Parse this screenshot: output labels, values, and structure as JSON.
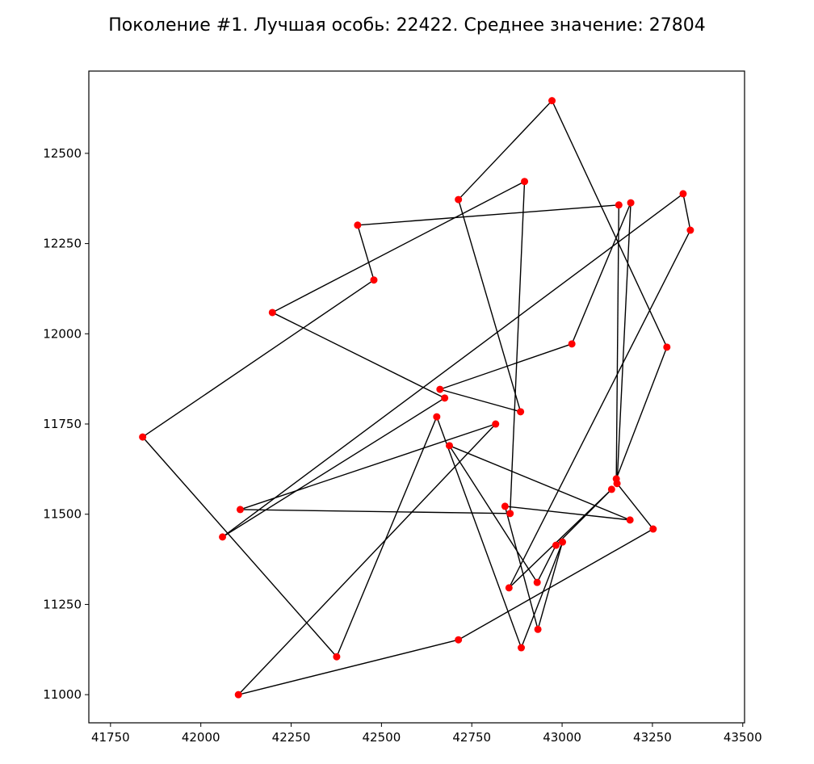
{
  "chart_data": {
    "type": "line",
    "title": "Поколение #1. Лучшая особь: 22422. Среднее значение: 27804",
    "xlabel": "",
    "ylabel": "",
    "xlim": [
      41690,
      43505
    ],
    "ylim": [
      10922,
      12728
    ],
    "xticks": [
      41750,
      42000,
      42250,
      42500,
      42750,
      43000,
      43250,
      43500
    ],
    "yticks": [
      11000,
      11250,
      11500,
      11750,
      12000,
      12250,
      12500
    ],
    "grid": false,
    "line_color": "#000000",
    "marker_color": "#ff0000",
    "closed_route": true,
    "route": [
      [
        42972,
        12646
      ],
      [
        42713,
        12372
      ],
      [
        42885,
        11784
      ],
      [
        42662,
        11846
      ],
      [
        43027,
        11972
      ],
      [
        43190,
        12363
      ],
      [
        43152,
        11585
      ],
      [
        43252,
        11459
      ],
      [
        42713,
        11152
      ],
      [
        42104,
        11000
      ],
      [
        42816,
        11750
      ],
      [
        42109,
        11513
      ],
      [
        42856,
        11502
      ],
      [
        42896,
        12422
      ],
      [
        42198,
        12059
      ],
      [
        42675,
        11822
      ],
      [
        42060,
        11437
      ],
      [
        43335,
        12388
      ],
      [
        43355,
        12287
      ],
      [
        42853,
        11296
      ],
      [
        43137,
        11569
      ],
      [
        42983,
        11414
      ],
      [
        42931,
        11311
      ],
      [
        42688,
        11690
      ],
      [
        43188,
        11484
      ],
      [
        42842,
        11522
      ],
      [
        42933,
        11181
      ],
      [
        43001,
        11423
      ],
      [
        42887,
        11130
      ],
      [
        42653,
        11770
      ],
      [
        42376,
        11105
      ],
      [
        41839,
        11714
      ],
      [
        42479,
        12149
      ],
      [
        42434,
        12301
      ],
      [
        43157,
        12357
      ],
      [
        43150,
        11598
      ],
      [
        43290,
        11963
      ]
    ]
  }
}
